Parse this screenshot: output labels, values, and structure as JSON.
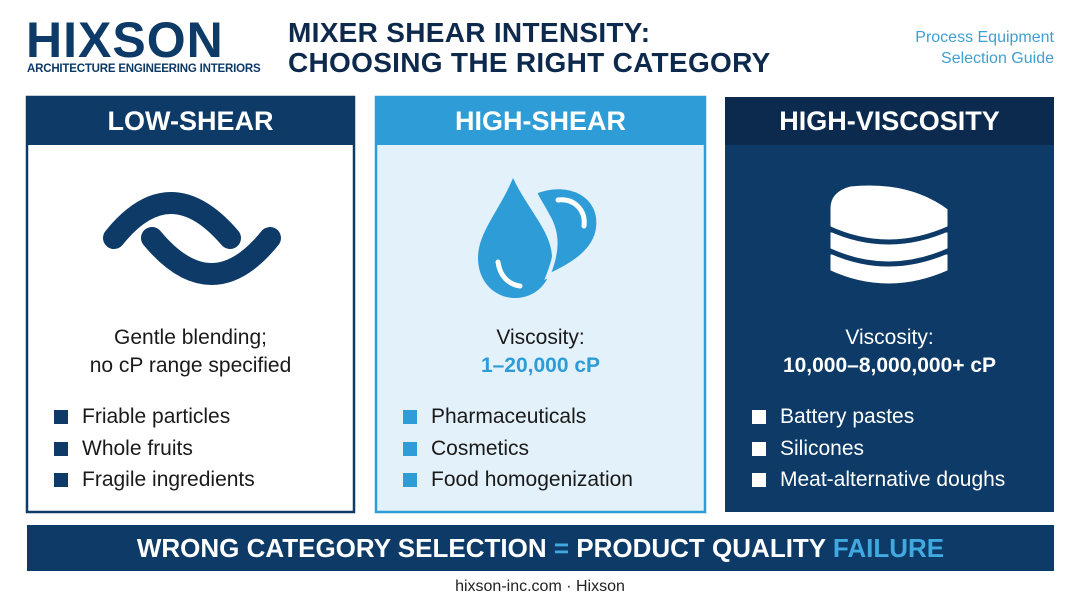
{
  "header": {
    "logo": "HIXSON",
    "tagline": "ARCHITECTURE ENGINEERING INTERIORS",
    "title": [
      "MIXER SHEAR INTENSITY:",
      "CHOOSING THE RIGHT CATEGORY"
    ],
    "guide": [
      "Process Equipment",
      "Selection Guide"
    ]
  },
  "cards": [
    {
      "title": "LOW-SHEAR",
      "description": [
        "Gentle blending;",
        "no cP range specified"
      ],
      "bullets": [
        "Friable particles",
        "Whole fruits",
        "Fragile ingredients"
      ]
    },
    {
      "title": "HIGH-SHEAR",
      "description": [
        "Viscosity:",
        "1–20,000 cP"
      ],
      "bullets": [
        "Pharmaceuticals",
        "Cosmetics",
        "Food homogenization"
      ]
    },
    {
      "title": "HIGH-VISCOSITY",
      "description": [
        "Viscosity:",
        "10,000–8,000,000+ cP"
      ],
      "bullets": [
        "Battery pastes",
        "Silicones",
        "Meat-alternative doughs"
      ]
    }
  ],
  "banner": [
    "WRONG CATEGORY SELECTION",
    "=",
    "PRODUCT QUALITY",
    "FAILURE"
  ],
  "footer": "hixson-inc.com · Hixson"
}
